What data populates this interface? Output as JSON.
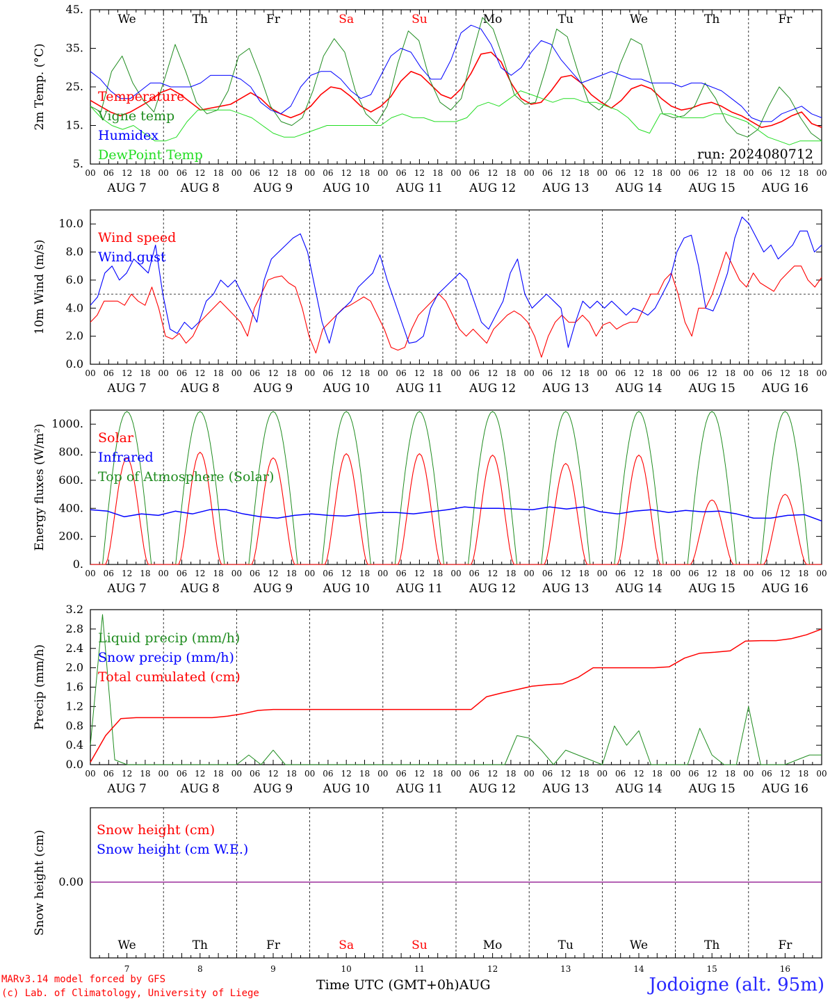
{
  "colors": {
    "red": "#ff0000",
    "green": "#1f8c1f",
    "blue": "#0000ff",
    "lightgreen": "#22dd22",
    "purple": "#9b2d9b"
  },
  "days": {
    "weekday": [
      "We",
      "Th",
      "Fr",
      "Sa",
      "Su",
      "Mo",
      "Tu",
      "We",
      "Th",
      "Fr"
    ],
    "weekday_colors": [
      "black",
      "black",
      "black",
      "red",
      "red",
      "black",
      "black",
      "black",
      "black",
      "black"
    ],
    "date": [
      "AUG  7",
      "AUG  8",
      "AUG  9",
      "AUG 10",
      "AUG 11",
      "AUG 12",
      "AUG 13",
      "AUG 14",
      "AUG 15",
      "AUG 16"
    ],
    "daynum": [
      "7",
      "8",
      "9",
      "10",
      "11",
      "12",
      "13",
      "14",
      "15",
      "16"
    ],
    "hours": [
      "00",
      "06",
      "12",
      "18"
    ],
    "final_hour": "00"
  },
  "footer": {
    "credit1": "MARv3.14 model forced by GFS",
    "credit2": "(c) Lab. of Climatology, University of Liege",
    "xlabel": "Time UTC (GMT+0h)AUG",
    "station": "Jodoigne (alt. 95m)"
  },
  "chart_data": [
    {
      "type": "line",
      "ylabel": "2m Temp. (°C)",
      "yticks": [
        "45.",
        "35.",
        "25.",
        "15.",
        "5."
      ],
      "ylim": [
        5,
        45
      ],
      "annotation": "run: 2024080712",
      "series": [
        {
          "name": "Temperature",
          "color": "red",
          "values": [
            21.5,
            20,
            18.5,
            17.5,
            18.5,
            20,
            21.5,
            23.5,
            24.5,
            23,
            21,
            19,
            19.5,
            20,
            20.5,
            22,
            23.5,
            22,
            19.5,
            18,
            17,
            18,
            20,
            23,
            25,
            24.5,
            22.5,
            20,
            18.5,
            20,
            22.5,
            26.5,
            29,
            28,
            25.5,
            23,
            22,
            24.5,
            28.5,
            33.5,
            34,
            31.5,
            26,
            22,
            20.5,
            21,
            24,
            27.5,
            28,
            26,
            23,
            21,
            19.5,
            21.5,
            24.5,
            25.5,
            24.5,
            22,
            20,
            19,
            19.5,
            20.5,
            21,
            20,
            18.5,
            17.5,
            16,
            14.5,
            15,
            16,
            17.5,
            18.5,
            15.5,
            14.5
          ]
        },
        {
          "name": "Vigne temp",
          "color": "green",
          "values": [
            20,
            18.5,
            29,
            33,
            26,
            21.5,
            18.5,
            27,
            36,
            29,
            21,
            18,
            19,
            24,
            33,
            35,
            28,
            20,
            16,
            15,
            17,
            24,
            33,
            37.5,
            34,
            24,
            18,
            15.5,
            20,
            31,
            39.5,
            37,
            27,
            21,
            19,
            22,
            33,
            43,
            40,
            32,
            23,
            20.5,
            21,
            30,
            40,
            38,
            29,
            21,
            19,
            22,
            31,
            37.5,
            36,
            26,
            18,
            17,
            17.5,
            20,
            26,
            22,
            16,
            13,
            12,
            14,
            20,
            25,
            22,
            17,
            13,
            11
          ]
        },
        {
          "name": "Humidex",
          "color": "blue",
          "values": [
            29,
            27,
            24,
            22,
            22,
            24,
            26,
            26,
            25,
            25,
            25,
            26,
            28,
            28,
            28,
            27,
            25,
            21,
            19,
            18,
            20,
            25,
            28,
            29,
            29,
            27,
            24,
            22,
            23,
            28,
            33,
            35,
            34,
            30,
            27,
            27,
            32,
            39,
            41,
            40,
            36,
            30,
            28,
            30,
            34,
            37,
            36,
            32,
            29,
            26,
            27,
            28,
            29,
            28,
            27,
            27,
            26,
            26,
            26,
            25,
            26,
            26,
            25,
            24,
            22,
            20,
            17,
            16,
            16,
            18,
            19,
            20,
            18,
            17
          ]
        },
        {
          "name": "DewPoint Temp",
          "color": "lightgreen",
          "values": [
            20,
            17,
            15,
            14,
            15,
            13,
            11,
            11,
            12,
            16,
            19,
            19,
            19,
            19,
            18,
            17,
            15,
            13,
            12,
            12,
            13,
            14,
            15,
            15,
            15,
            15,
            15,
            15,
            17,
            18,
            17,
            17,
            16,
            16,
            16,
            17,
            20,
            21,
            20,
            22,
            24,
            23,
            22,
            21,
            22,
            22,
            21,
            21,
            20,
            19,
            17,
            14,
            13,
            18,
            18,
            17,
            17,
            17,
            18,
            18,
            17,
            16,
            14,
            12,
            11,
            10,
            11,
            11,
            11
          ]
        }
      ]
    },
    {
      "type": "line",
      "ylabel": "10m Wind (m/s)",
      "yticks": [
        "10.0",
        "8.0",
        "6.0",
        "4.0",
        "2.0",
        "0.0"
      ],
      "ylim": [
        0,
        11
      ],
      "reference_line": 5.0,
      "series": [
        {
          "name": "Wind speed",
          "color": "red",
          "values": [
            3,
            3.5,
            4.5,
            4.5,
            4.5,
            4.2,
            5,
            4.5,
            4.2,
            5.5,
            4,
            2,
            1.8,
            2.2,
            1.5,
            2,
            3,
            3.5,
            4,
            4.5,
            4,
            3.5,
            3,
            2,
            4,
            5,
            6,
            6.2,
            6.3,
            5.8,
            5.5,
            4,
            2,
            0.8,
            2.5,
            3,
            3.5,
            4,
            4.2,
            4.5,
            4.8,
            4.5,
            3.5,
            2.5,
            1.2,
            1,
            1.2,
            2.5,
            3.5,
            4,
            4.5,
            5,
            4.5,
            3.5,
            2.5,
            2,
            2.5,
            2,
            1.5,
            2.5,
            3,
            3.5,
            3.8,
            3.5,
            3,
            2,
            0.5,
            2,
            3,
            3.5,
            3,
            3,
            3.5,
            3,
            2,
            2.8,
            3,
            2.5,
            2.8,
            3,
            3,
            4,
            5,
            5,
            6,
            6.5,
            5,
            3,
            2,
            4,
            4,
            5,
            6.5,
            8,
            7,
            6,
            5.5,
            6.5,
            5.8,
            5.5,
            5.2,
            6,
            6.5,
            7,
            7,
            6,
            5.5,
            6.2
          ]
        },
        {
          "name": "Wind gust",
          "color": "blue",
          "values": [
            4.2,
            4.8,
            6.5,
            7,
            6,
            6.5,
            7.5,
            7,
            6.5,
            8.5,
            5,
            2.5,
            2.2,
            3,
            2.5,
            3,
            4.5,
            5,
            6,
            5.5,
            6,
            5,
            4,
            3,
            6,
            7.5,
            8,
            8.5,
            9,
            9.3,
            8,
            5.5,
            3,
            1.5,
            3.5,
            4,
            4.5,
            5.5,
            6,
            6.5,
            7.8,
            6,
            4.5,
            3,
            1.5,
            1.6,
            2,
            4,
            5,
            5.5,
            6,
            6.5,
            6,
            4.5,
            3,
            2.5,
            3.5,
            4.5,
            6.5,
            7.5,
            5,
            4,
            4.5,
            5,
            4.5,
            4,
            1.2,
            3,
            4.5,
            4,
            4.5,
            4,
            4.5,
            4,
            3.5,
            4,
            3.8,
            3.5,
            4,
            5,
            6,
            8,
            9,
            9.2,
            7,
            4,
            3.8,
            5,
            6.5,
            9,
            10.5,
            10,
            9,
            8,
            8.5,
            7.5,
            8,
            8.5,
            9.5,
            9.5,
            8,
            8.5
          ]
        }
      ]
    },
    {
      "type": "line",
      "ylabel": "Energy fluxes (W/m²)",
      "yticks": [
        "1000.",
        "800.",
        "600.",
        "400.",
        "200.",
        "0."
      ],
      "ylim": [
        0,
        1100
      ],
      "series": [
        {
          "name": "Solar",
          "color": "red",
          "daily_peaks": [
            760,
            800,
            760,
            790,
            790,
            780,
            720,
            780,
            460,
            500
          ]
        },
        {
          "name": "Infrared",
          "color": "blue",
          "values": [
            390,
            380,
            340,
            360,
            350,
            380,
            360,
            390,
            390,
            360,
            340,
            330,
            350,
            360,
            350,
            345,
            360,
            370,
            370,
            360,
            375,
            390,
            410,
            400,
            400,
            395,
            390,
            410,
            395,
            410,
            375,
            360,
            380,
            390,
            370,
            385,
            375,
            380,
            360,
            330,
            330,
            350,
            355,
            310
          ]
        },
        {
          "name": "Top of Atmosphere (Solar)",
          "color": "green",
          "daily_peak": 1090
        }
      ]
    },
    {
      "type": "line",
      "ylabel": "Precip (mm/h)",
      "yticks": [
        "3.2",
        "2.8",
        "2.4",
        "2.0",
        "1.6",
        "1.2",
        "0.8",
        "0.4",
        "0.0"
      ],
      "ylim": [
        0,
        3.2
      ],
      "series": [
        {
          "name": "Liquid precip (mm/h)",
          "color": "green",
          "values": [
            0.4,
            3.1,
            0.1,
            0,
            0,
            0,
            0,
            0,
            0,
            0,
            0,
            0,
            0,
            0.2,
            0,
            0.3,
            0,
            0,
            0,
            0,
            0,
            0,
            0,
            0,
            0,
            0,
            0,
            0,
            0,
            0,
            0,
            0,
            0,
            0,
            0,
            0.6,
            0.55,
            0.3,
            0,
            0.3,
            0.2,
            0.1,
            0,
            0.8,
            0.4,
            0.7,
            0,
            0,
            0,
            0,
            0.75,
            0.2,
            0,
            0,
            1.2,
            0,
            0,
            0,
            0.1,
            0.2,
            0.2
          ]
        },
        {
          "name": "Snow precip (mm/h)",
          "color": "blue",
          "values": []
        },
        {
          "name": "Total cumulated (cm)",
          "color": "red",
          "values": [
            0.05,
            0.6,
            0.95,
            0.97,
            0.97,
            0.97,
            0.97,
            0.97,
            0.97,
            1.0,
            1.05,
            1.12,
            1.14,
            1.14,
            1.14,
            1.14,
            1.14,
            1.14,
            1.14,
            1.14,
            1.14,
            1.14,
            1.14,
            1.14,
            1.14,
            1.14,
            1.4,
            1.48,
            1.55,
            1.62,
            1.65,
            1.67,
            1.8,
            2.0,
            2.0,
            2.0,
            2.0,
            2.0,
            2.02,
            2.2,
            2.3,
            2.32,
            2.35,
            2.55,
            2.56,
            2.56,
            2.6,
            2.68,
            2.8
          ]
        }
      ]
    },
    {
      "type": "line",
      "ylabel": "Snow height (cm)",
      "yticks": [
        "0.00"
      ],
      "series": [
        {
          "name": "Snow height (cm)",
          "color": "red",
          "values": [
            0,
            0
          ]
        },
        {
          "name": "Snow height (cm W.E.)",
          "color": "blue",
          "values": [
            0,
            0
          ]
        }
      ]
    }
  ]
}
